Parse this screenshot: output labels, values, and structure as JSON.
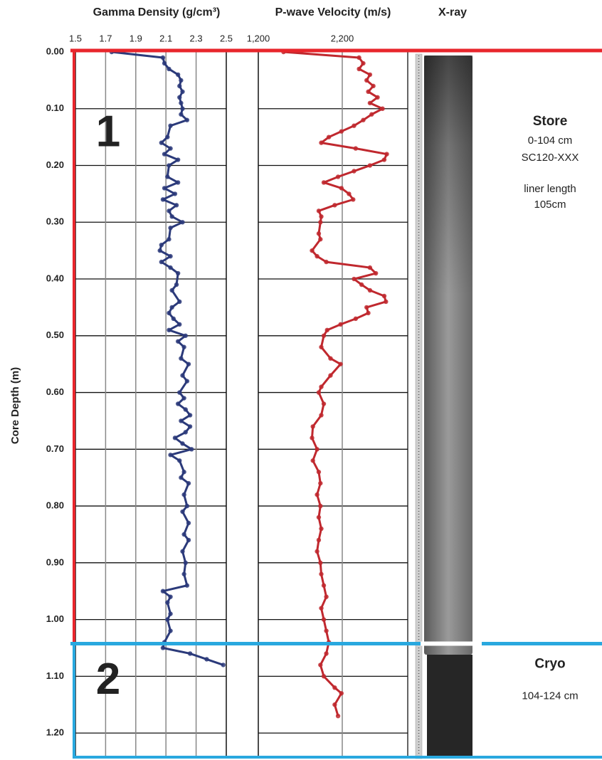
{
  "chart_data": [
    {
      "type": "line",
      "title": "Gamma Density (g/cm³)",
      "color": "#2b3a7a",
      "grid": true,
      "xlim": [
        1.5,
        2.5
      ],
      "xticks": [
        1.5,
        1.7,
        1.9,
        2.1,
        2.3,
        2.5
      ],
      "ylabel": "Core Depth (m)",
      "ylim": [
        0,
        1.245
      ],
      "yticks": [
        {
          "value": 0,
          "label": "0.00"
        },
        {
          "value": 0.1,
          "label": "0.10"
        },
        {
          "value": 0.2,
          "label": "0.20"
        },
        {
          "value": 0.3,
          "label": "0.30"
        },
        {
          "value": 0.4,
          "label": "0.40"
        },
        {
          "value": 0.5,
          "label": "0.50"
        },
        {
          "value": 0.6,
          "label": "0.60"
        },
        {
          "value": 0.7,
          "label": "0.70"
        },
        {
          "value": 0.8,
          "label": "0.80"
        },
        {
          "value": 0.9,
          "label": "0.90"
        },
        {
          "value": 1.0,
          "label": "1.00"
        },
        {
          "value": 1.1,
          "label": "1.10"
        },
        {
          "value": 1.2,
          "label": "1.20"
        }
      ],
      "depth": [
        0,
        0.01,
        0.02,
        0.03,
        0.04,
        0.05,
        0.06,
        0.07,
        0.08,
        0.09,
        0.1,
        0.11,
        0.12,
        0.13,
        0.15,
        0.16,
        0.17,
        0.18,
        0.19,
        0.2,
        0.22,
        0.23,
        0.24,
        0.25,
        0.26,
        0.27,
        0.28,
        0.29,
        0.3,
        0.31,
        0.33,
        0.34,
        0.35,
        0.36,
        0.37,
        0.38,
        0.39,
        0.41,
        0.42,
        0.44,
        0.45,
        0.46,
        0.47,
        0.48,
        0.49,
        0.5,
        0.51,
        0.52,
        0.54,
        0.55,
        0.57,
        0.58,
        0.6,
        0.61,
        0.62,
        0.63,
        0.64,
        0.65,
        0.66,
        0.67,
        0.68,
        0.69,
        0.7,
        0.71,
        0.72,
        0.74,
        0.75,
        0.76,
        0.78,
        0.8,
        0.81,
        0.83,
        0.85,
        0.86,
        0.88,
        0.9,
        0.92,
        0.94,
        0.95,
        0.96,
        0.97,
        0.99,
        1.0,
        1.02,
        1.04,
        1.05,
        1.06,
        1.07,
        1.08
      ],
      "values": [
        1.74,
        2.08,
        2.09,
        2.12,
        2.18,
        2.2,
        2.19,
        2.21,
        2.19,
        2.2,
        2.21,
        2.2,
        2.24,
        2.13,
        2.11,
        2.07,
        2.13,
        2.09,
        2.18,
        2.12,
        2.11,
        2.18,
        2.09,
        2.16,
        2.08,
        2.17,
        2.12,
        2.14,
        2.21,
        2.13,
        2.12,
        2.07,
        2.06,
        2.13,
        2.07,
        2.13,
        2.18,
        2.17,
        2.14,
        2.19,
        2.14,
        2.12,
        2.15,
        2.19,
        2.12,
        2.23,
        2.18,
        2.22,
        2.2,
        2.25,
        2.21,
        2.24,
        2.19,
        2.22,
        2.18,
        2.23,
        2.26,
        2.2,
        2.26,
        2.23,
        2.16,
        2.21,
        2.27,
        2.13,
        2.19,
        2.22,
        2.2,
        2.25,
        2.22,
        2.24,
        2.21,
        2.25,
        2.22,
        2.25,
        2.21,
        2.23,
        2.22,
        2.24,
        2.08,
        2.13,
        2.11,
        2.13,
        2.11,
        2.13,
        2.09,
        2.08,
        2.26,
        2.37,
        2.48
      ]
    },
    {
      "type": "line",
      "title": "P-wave Velocity (m/s)",
      "color": "#c0282e",
      "grid": true,
      "xlim": [
        1200,
        2980
      ],
      "xticks": [
        {
          "value": 1200,
          "label": "1,200"
        },
        {
          "value": 2200,
          "label": "2,200"
        }
      ],
      "depth": [
        0,
        0.01,
        0.02,
        0.03,
        0.04,
        0.05,
        0.06,
        0.07,
        0.08,
        0.09,
        0.1,
        0.11,
        0.12,
        0.13,
        0.14,
        0.15,
        0.16,
        0.17,
        0.18,
        0.19,
        0.2,
        0.21,
        0.22,
        0.23,
        0.24,
        0.25,
        0.26,
        0.27,
        0.28,
        0.29,
        0.3,
        0.32,
        0.33,
        0.35,
        0.36,
        0.37,
        0.38,
        0.39,
        0.4,
        0.41,
        0.42,
        0.43,
        0.44,
        0.45,
        0.46,
        0.47,
        0.48,
        0.49,
        0.5,
        0.52,
        0.54,
        0.55,
        0.57,
        0.59,
        0.6,
        0.62,
        0.64,
        0.66,
        0.68,
        0.7,
        0.72,
        0.74,
        0.76,
        0.78,
        0.8,
        0.82,
        0.84,
        0.86,
        0.88,
        0.9,
        0.92,
        0.94,
        0.96,
        0.98,
        1.0,
        1.02,
        1.04,
        1.06,
        1.08,
        1.1,
        1.12,
        1.13,
        1.15,
        1.17
      ],
      "values": [
        1500,
        2400,
        2450,
        2400,
        2530,
        2490,
        2570,
        2510,
        2620,
        2530,
        2680,
        2550,
        2450,
        2340,
        2190,
        2040,
        1950,
        2360,
        2730,
        2700,
        2530,
        2340,
        2150,
        1980,
        2190,
        2280,
        2330,
        2110,
        1920,
        1950,
        1940,
        1920,
        1940,
        1840,
        1900,
        2010,
        2530,
        2600,
        2340,
        2430,
        2530,
        2700,
        2720,
        2490,
        2510,
        2360,
        2180,
        2020,
        1980,
        1950,
        2060,
        2180,
        2060,
        1950,
        1920,
        1980,
        1950,
        1850,
        1840,
        1900,
        1850,
        1920,
        1940,
        1900,
        1940,
        1920,
        1950,
        1920,
        1900,
        1940,
        1950,
        1980,
        2010,
        1950,
        1980,
        2010,
        2040,
        2010,
        1940,
        1980,
        2110,
        2190,
        2110,
        2150
      ]
    }
  ],
  "xray_title": "X-ray",
  "sections": [
    {
      "number": "1",
      "name": "Store",
      "depth_top": 0,
      "range": "0-104 cm",
      "core_id": "SC120-XXX",
      "note_lines": [
        "liner length",
        "105cm"
      ]
    },
    {
      "number": "2",
      "name": "Cryo",
      "depth_top": 1.045,
      "range": "104-124 cm"
    }
  ]
}
